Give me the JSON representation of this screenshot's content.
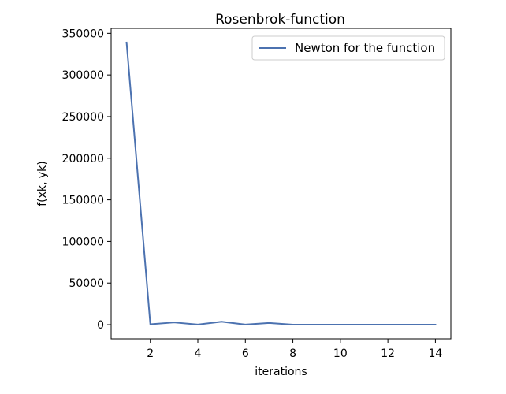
{
  "chart_data": {
    "type": "line",
    "title": "Rosenbrok-function",
    "xlabel": "iterations",
    "ylabel": "f(xk, yk)",
    "xlim": [
      0.35,
      14.65
    ],
    "ylim": [
      -17000,
      356000
    ],
    "xticks": [
      2,
      4,
      6,
      8,
      10,
      12,
      14
    ],
    "xtick_labels": [
      "2",
      "4",
      "6",
      "8",
      "10",
      "12",
      "14"
    ],
    "yticks": [
      0,
      50000,
      100000,
      150000,
      200000,
      250000,
      300000,
      350000
    ],
    "ytick_labels": [
      "0",
      "50000",
      "100000",
      "150000",
      "200000",
      "250000",
      "300000",
      "350000"
    ],
    "grid": false,
    "legend_position": "upper right",
    "series": [
      {
        "name": "Newton for the function",
        "color": "#4c72b0",
        "x": [
          1,
          2,
          3,
          4,
          5,
          6,
          7,
          8,
          9,
          10,
          11,
          12,
          13,
          14
        ],
        "y": [
          339000,
          500,
          2700,
          200,
          3600,
          200,
          2100,
          100,
          100,
          50,
          50,
          20,
          20,
          10
        ]
      }
    ]
  }
}
